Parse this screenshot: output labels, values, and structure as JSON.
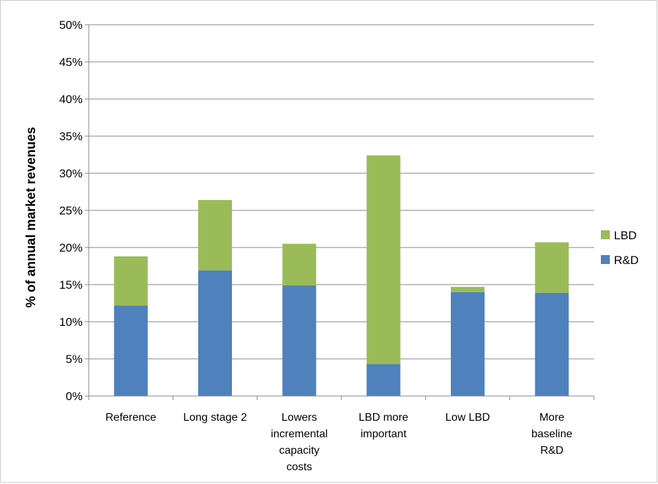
{
  "chart_data": {
    "type": "bar",
    "stacked": true,
    "title": "",
    "xlabel": "",
    "ylabel": "% of annual market revenues",
    "ylim": [
      0,
      50
    ],
    "yticks": [
      0,
      5,
      10,
      15,
      20,
      25,
      30,
      35,
      40,
      45,
      50
    ],
    "ytick_labels": [
      "0%",
      "5%",
      "10%",
      "15%",
      "20%",
      "25%",
      "30%",
      "35%",
      "40%",
      "45%",
      "50%"
    ],
    "grid": true,
    "legend_position": "right",
    "categories": [
      "Reference",
      "Long stage 2",
      "Lowers incremental capacity costs",
      "LBD more important",
      "Low LBD",
      "More baseline R&D"
    ],
    "category_label_lines": [
      [
        "Reference"
      ],
      [
        "Long stage 2"
      ],
      [
        "Lowers",
        "incremental",
        "capacity",
        "costs"
      ],
      [
        "LBD more",
        "important"
      ],
      [
        "Low LBD"
      ],
      [
        "More",
        "baseline",
        "R&D"
      ]
    ],
    "series": [
      {
        "name": "R&D",
        "color": "#4f81bd",
        "values": [
          12.2,
          16.9,
          14.9,
          4.3,
          14.0,
          13.9
        ]
      },
      {
        "name": "LBD",
        "color": "#9bbb59",
        "values": [
          6.6,
          9.5,
          5.6,
          28.1,
          0.7,
          6.8
        ]
      }
    ],
    "legend_order": [
      "LBD",
      "R&D"
    ]
  }
}
